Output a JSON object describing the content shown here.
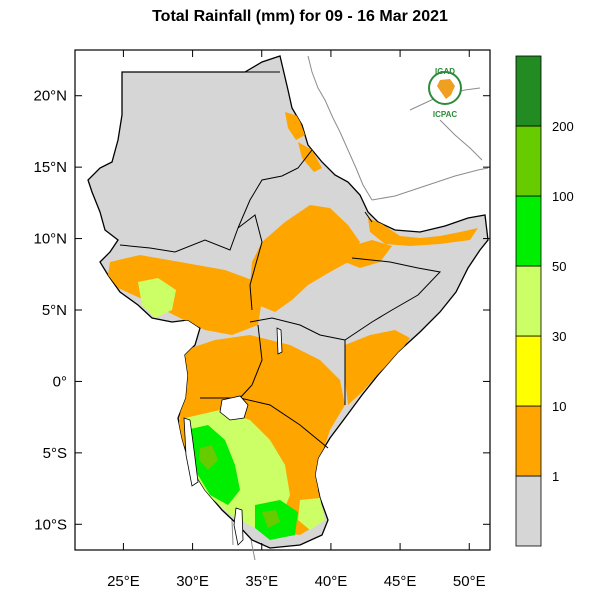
{
  "title": "Total Rainfall (mm) for 09 - 16 Mar 2021",
  "map": {
    "lat_labels": [
      {
        "text": "20°N",
        "lat": 20
      },
      {
        "text": "15°N",
        "lat": 15
      },
      {
        "text": "10°N",
        "lat": 10
      },
      {
        "text": "5°N",
        "lat": 5
      },
      {
        "text": "0°",
        "lat": 0
      },
      {
        "text": "5°S",
        "lat": -5
      },
      {
        "text": "10°S",
        "lat": -10
      }
    ],
    "lon_labels": [
      {
        "text": "25°E",
        "lon": 25
      },
      {
        "text": "30°E",
        "lon": 30
      },
      {
        "text": "35°E",
        "lon": 35
      },
      {
        "text": "40°E",
        "lon": 40
      },
      {
        "text": "45°E",
        "lon": 45
      },
      {
        "text": "50°E",
        "lon": 50
      }
    ],
    "lon_range": [
      21.5,
      51.5
    ],
    "lat_range": [
      -11.8,
      23.2
    ],
    "land_color": "#d6d6d6",
    "border_color": "#000000",
    "neighbor_line_color": "#8c8c8c"
  },
  "logo": {
    "top_text": "IGAD",
    "bottom_text": "ICPAC",
    "text_color": "#2e8b3a"
  },
  "legend": {
    "bins": [
      {
        "color": "#d6d6d6"
      },
      {
        "color": "#ffa500"
      },
      {
        "color": "#ffff00"
      },
      {
        "color": "#ccff66"
      },
      {
        "color": "#00ee00"
      },
      {
        "color": "#66cc00"
      },
      {
        "color": "#228b22"
      }
    ],
    "labels": [
      "1",
      "10",
      "30",
      "50",
      "100",
      "200"
    ]
  }
}
